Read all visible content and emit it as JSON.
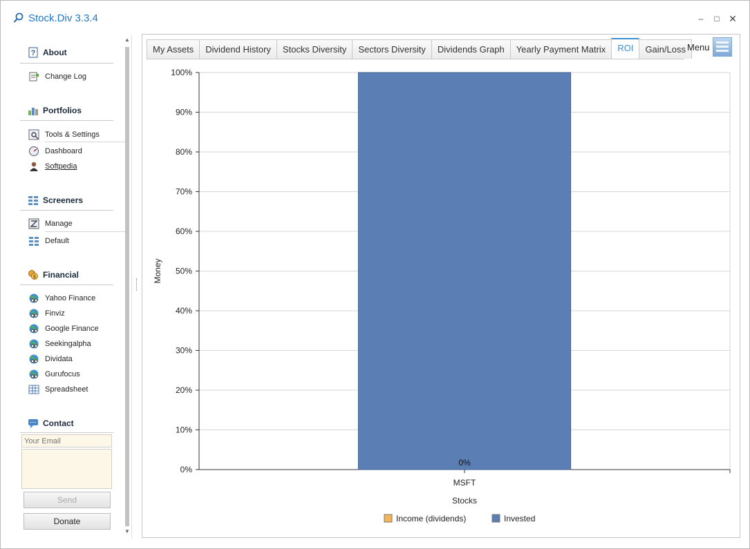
{
  "window": {
    "title": "Stock.Div 3.3.4",
    "controls": {
      "minimize": "–",
      "maximize": "□",
      "close": "✕"
    }
  },
  "sidebar": {
    "about": {
      "heading": "About",
      "icon": "help-icon",
      "items": [
        {
          "label": "Change Log",
          "icon": "changelog-icon"
        }
      ]
    },
    "portfolios": {
      "heading": "Portfolios",
      "icon": "portfolio-icon",
      "items": [
        {
          "label": "Tools & Settings",
          "icon": "tools-icon"
        },
        {
          "label": "Dashboard",
          "icon": "dashboard-icon"
        },
        {
          "label": "Softpedia",
          "icon": "user-icon"
        }
      ]
    },
    "screeners": {
      "heading": "Screeners",
      "icon": "screener-icon",
      "items": [
        {
          "label": "Manage",
          "icon": "manage-icon"
        },
        {
          "label": "Default",
          "icon": "grid-icon"
        }
      ]
    },
    "financial": {
      "heading": "Financial",
      "icon": "coins-icon",
      "items": [
        {
          "label": "Yahoo Finance",
          "icon": "globe-icon"
        },
        {
          "label": "Finviz",
          "icon": "globe-icon"
        },
        {
          "label": "Google Finance",
          "icon": "globe-icon"
        },
        {
          "label": "Seekingalpha",
          "icon": "globe-icon"
        },
        {
          "label": "Dividata",
          "icon": "globe-icon"
        },
        {
          "label": "Gurufocus",
          "icon": "globe-icon"
        },
        {
          "label": "Spreadsheet",
          "icon": "spreadsheet-icon"
        }
      ]
    },
    "contact": {
      "heading": "Contact",
      "icon": "chat-icon",
      "email_placeholder": "Your Email",
      "send_label": "Send",
      "donate_label": "Donate"
    }
  },
  "tabs": [
    {
      "label": "My Assets",
      "active": false
    },
    {
      "label": "Dividend History",
      "active": false
    },
    {
      "label": "Stocks Diversity",
      "active": false
    },
    {
      "label": "Sectors Diversity",
      "active": false
    },
    {
      "label": "Dividends Graph",
      "active": false
    },
    {
      "label": "Yearly Payment Matrix",
      "active": false
    },
    {
      "label": "ROI",
      "active": true
    },
    {
      "label": "Gain/Loss",
      "active": false
    }
  ],
  "menu": {
    "label": "Menu",
    "icon": "menu-icon"
  },
  "colors": {
    "accent": "#3b8fd1",
    "invested": "#5b7fb5",
    "income": "#f4b557"
  },
  "chart_data": {
    "type": "bar",
    "stacked": true,
    "categories": [
      "MSFT"
    ],
    "series": [
      {
        "name": "Income (dividends)",
        "values": [
          0
        ],
        "color": "#f4b557"
      },
      {
        "name": "Invested",
        "values": [
          100
        ],
        "color": "#5b7fb5"
      }
    ],
    "data_labels": [
      "0%"
    ],
    "xlabel": "Stocks",
    "ylabel": "Money",
    "ylim": [
      0,
      100
    ],
    "yticks": [
      "0%",
      "10%",
      "20%",
      "30%",
      "40%",
      "50%",
      "60%",
      "70%",
      "80%",
      "90%",
      "100%"
    ],
    "grid": true,
    "legend": "bottom"
  }
}
